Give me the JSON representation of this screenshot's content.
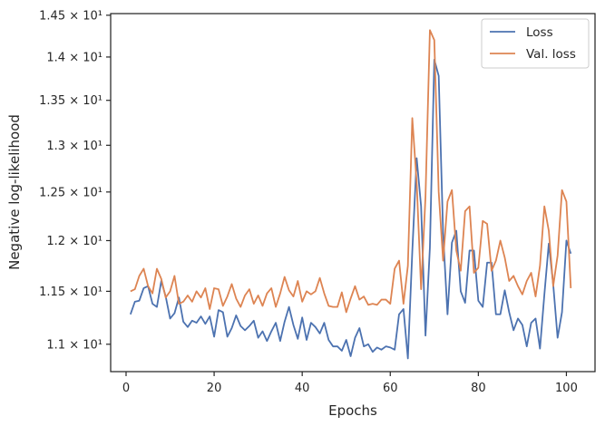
{
  "chart_data": {
    "type": "line",
    "xlabel": "Epochs",
    "ylabel": "Negative log-likelihood",
    "xlim": [
      -3.5,
      106.5
    ],
    "ylim": [
      10.75,
      14.52
    ],
    "y_scale": "log",
    "legend_placement": "top-right",
    "grid": false,
    "x_ticks": [
      0,
      20,
      40,
      60,
      80,
      100
    ],
    "x_tick_labels": [
      "0",
      "20",
      "40",
      "60",
      "80",
      "100"
    ],
    "y_ticks": [
      11.0,
      11.5,
      12.0,
      12.5,
      13.0,
      13.5,
      14.0,
      14.5
    ],
    "y_tick_labels": [
      "1.1 × 10¹",
      "1.15 × 10¹",
      "1.2 × 10¹",
      "1.25 × 10¹",
      "1.3 × 10¹",
      "1.35 × 10¹",
      "1.4 × 10¹",
      "1.45 × 10¹"
    ],
    "x": [
      1,
      2,
      3,
      4,
      5,
      6,
      7,
      8,
      9,
      10,
      11,
      12,
      13,
      14,
      15,
      16,
      17,
      18,
      19,
      20,
      21,
      22,
      23,
      24,
      25,
      26,
      27,
      28,
      29,
      30,
      31,
      32,
      33,
      34,
      35,
      36,
      37,
      38,
      39,
      40,
      41,
      42,
      43,
      44,
      45,
      46,
      47,
      48,
      49,
      50,
      51,
      52,
      53,
      54,
      55,
      56,
      57,
      58,
      59,
      60,
      61,
      62,
      63,
      64,
      65,
      66,
      67,
      68,
      69,
      70,
      71,
      72,
      73,
      74,
      75,
      76,
      77,
      78,
      79,
      80,
      81,
      82,
      83,
      84,
      85,
      86,
      87,
      88,
      89,
      90,
      91,
      92,
      93,
      94,
      95,
      96,
      97,
      98,
      99,
      100,
      101
    ],
    "series": [
      {
        "name": "Loss",
        "color": "#4c72b0",
        "values": [
          11.28,
          11.4,
          11.41,
          11.53,
          11.55,
          11.38,
          11.35,
          11.6,
          11.45,
          11.24,
          11.29,
          11.44,
          11.21,
          11.16,
          11.22,
          11.2,
          11.26,
          11.19,
          11.26,
          11.07,
          11.32,
          11.3,
          11.07,
          11.15,
          11.27,
          11.17,
          11.13,
          11.17,
          11.22,
          11.06,
          11.12,
          11.03,
          11.12,
          11.2,
          11.03,
          11.21,
          11.35,
          11.18,
          11.05,
          11.25,
          11.04,
          11.2,
          11.16,
          11.1,
          11.2,
          11.04,
          10.98,
          10.98,
          10.94,
          11.04,
          10.89,
          11.06,
          11.15,
          10.98,
          11.0,
          10.93,
          10.97,
          10.95,
          10.98,
          10.97,
          10.95,
          11.28,
          11.33,
          10.87,
          11.89,
          12.86,
          12.35,
          11.08,
          11.93,
          13.97,
          13.78,
          12.07,
          11.28,
          11.98,
          12.1,
          11.5,
          11.39,
          11.9,
          11.9,
          11.41,
          11.35,
          11.78,
          11.78,
          11.28,
          11.28,
          11.51,
          11.3,
          11.13,
          11.24,
          11.18,
          10.98,
          11.2,
          11.24,
          10.96,
          11.47,
          11.97,
          11.57,
          11.06,
          11.3,
          12.0,
          11.87
        ]
      },
      {
        "name": "Val. loss",
        "color": "#dd8452",
        "values": [
          11.5,
          11.52,
          11.65,
          11.72,
          11.55,
          11.48,
          11.72,
          11.62,
          11.44,
          11.5,
          11.65,
          11.38,
          11.4,
          11.46,
          11.4,
          11.5,
          11.44,
          11.53,
          11.33,
          11.53,
          11.52,
          11.36,
          11.45,
          11.57,
          11.43,
          11.35,
          11.46,
          11.52,
          11.38,
          11.46,
          11.36,
          11.48,
          11.53,
          11.35,
          11.48,
          11.64,
          11.51,
          11.45,
          11.6,
          11.4,
          11.5,
          11.47,
          11.5,
          11.63,
          11.48,
          11.36,
          11.35,
          11.35,
          11.49,
          11.3,
          11.43,
          11.55,
          11.42,
          11.45,
          11.37,
          11.38,
          11.37,
          11.42,
          11.42,
          11.38,
          11.72,
          11.8,
          11.38,
          11.75,
          13.3,
          12.6,
          11.52,
          12.45,
          14.32,
          14.2,
          12.5,
          11.8,
          12.4,
          12.52,
          11.9,
          11.7,
          12.3,
          12.35,
          11.68,
          11.73,
          12.2,
          12.17,
          11.7,
          11.8,
          12.0,
          11.83,
          11.6,
          11.65,
          11.55,
          11.47,
          11.6,
          11.68,
          11.45,
          11.75,
          12.35,
          12.1,
          11.55,
          11.85,
          12.52,
          12.4,
          11.53
        ]
      }
    ]
  }
}
